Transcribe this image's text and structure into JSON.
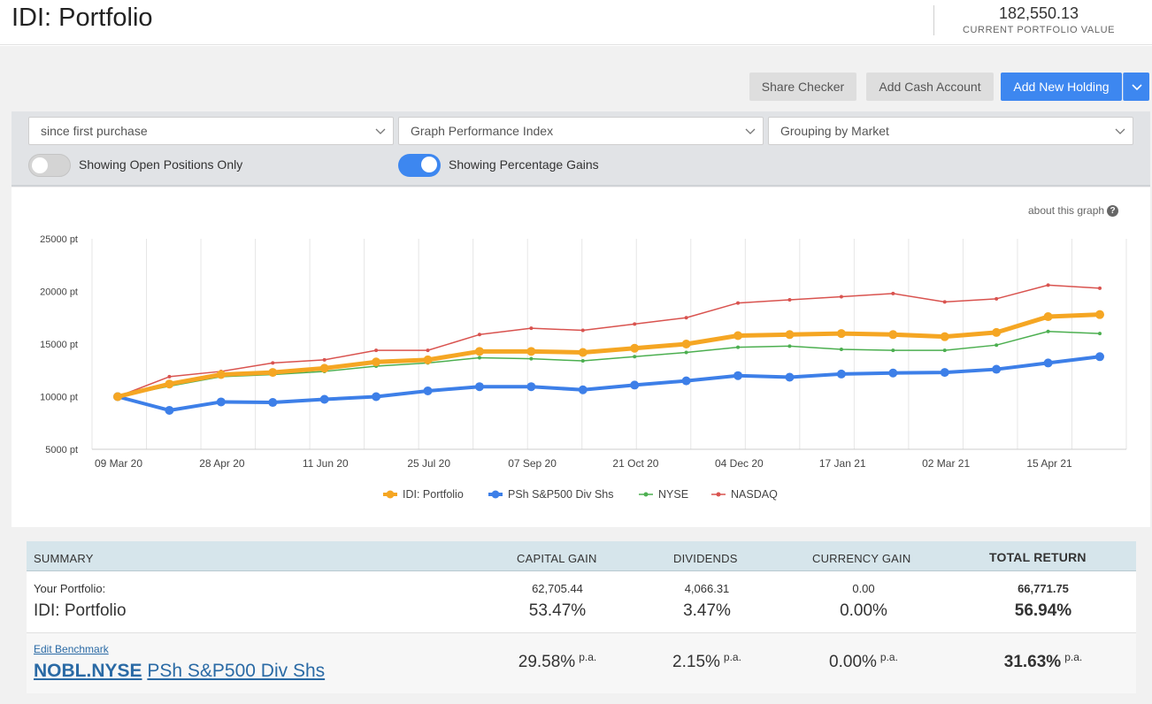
{
  "header": {
    "title": "IDI: Portfolio",
    "portfolio_value": "182,550.13",
    "portfolio_value_label": "CURRENT PORTFOLIO VALUE"
  },
  "toolbar": {
    "share_checker": "Share Checker",
    "add_cash_account": "Add Cash Account",
    "add_new_holding": "Add New Holding"
  },
  "filters": {
    "period": "since first purchase",
    "graph_type": "Graph Performance Index",
    "grouping": "Grouping by Market",
    "open_positions_label": "Showing Open Positions Only",
    "open_positions_on": false,
    "percentage_gains_label": "Showing Percentage Gains",
    "percentage_gains_on": true
  },
  "about_graph": "about this graph",
  "colors": {
    "accent": "#3d87f0",
    "portfolio": "#f5a623",
    "benchmark": "#3d7fe8",
    "nyse": "#4caf50",
    "nasdaq": "#d9534f"
  },
  "chart_data": {
    "type": "line",
    "ylim": [
      5000,
      25000
    ],
    "yticks": [
      "25000 pt",
      "20000 pt",
      "15000 pt",
      "10000 pt",
      "5000 pt"
    ],
    "x_labels": [
      "09 Mar 20",
      "28 Apr 20",
      "11 Jun 20",
      "25 Jul 20",
      "07 Sep 20",
      "21 Oct 20",
      "04 Dec 20",
      "17 Jan 21",
      "02 Mar 21",
      "15 Apr 21"
    ],
    "grid": true,
    "legend": "bottom",
    "series": [
      {
        "name": "IDI: Portfolio",
        "color": "#f5a623",
        "values": [
          10000,
          11200,
          12100,
          12300,
          12700,
          13300,
          13500,
          14300,
          14300,
          14200,
          14600,
          15000,
          15800,
          15900,
          16000,
          15900,
          15700,
          16100,
          17600,
          17800
        ]
      },
      {
        "name": "PSh S&P500 Div Shs",
        "color": "#3d7fe8",
        "values": [
          10000,
          8700,
          9500,
          9450,
          9750,
          10000,
          10550,
          10950,
          10950,
          10650,
          11100,
          11500,
          12000,
          11850,
          12150,
          12250,
          12300,
          12600,
          13200,
          13800
        ]
      },
      {
        "name": "NYSE",
        "color": "#4caf50",
        "values": [
          10000,
          11000,
          11900,
          12100,
          12400,
          12900,
          13200,
          13700,
          13600,
          13400,
          13800,
          14200,
          14700,
          14800,
          14500,
          14400,
          14400,
          14900,
          16200,
          16000
        ]
      },
      {
        "name": "NASDAQ",
        "color": "#d9534f",
        "values": [
          10000,
          11900,
          12400,
          13200,
          13500,
          14400,
          14400,
          15900,
          16500,
          16300,
          16900,
          17500,
          18900,
          19200,
          19500,
          19800,
          19000,
          19300,
          20600,
          20300
        ]
      }
    ]
  },
  "summary": {
    "headers": {
      "summary": "SUMMARY",
      "capital_gain": "CAPITAL GAIN",
      "dividends": "DIVIDENDS",
      "currency_gain": "CURRENCY GAIN",
      "total_return": "TOTAL RETURN"
    },
    "portfolio": {
      "label": "Your Portfolio:",
      "name": "IDI: Portfolio",
      "capital_gain_value": "62,705.44",
      "capital_gain_pct": "53.47%",
      "dividends_value": "4,066.31",
      "dividends_pct": "3.47%",
      "currency_gain_value": "0.00",
      "currency_gain_pct": "0.00%",
      "total_return_value": "66,771.75",
      "total_return_pct": "56.94%"
    },
    "benchmark": {
      "edit_label": "Edit Benchmark",
      "code": "NOBL.NYSE",
      "name": "PSh S&P500 Div Shs",
      "capital_gain_pct": "29.58%",
      "dividends_pct": "2.15%",
      "currency_gain_pct": "0.00%",
      "total_return_pct": "31.63%",
      "pa_label": "p.a."
    }
  }
}
